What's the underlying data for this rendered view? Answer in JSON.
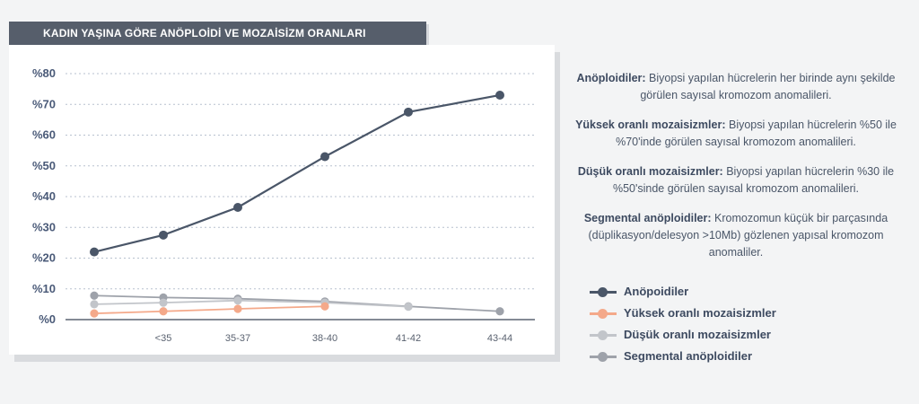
{
  "header": {
    "title": "KADIN YAŞINA GÖRE ANÖPLOİDİ VE MOZAİSİZM ORANLARI"
  },
  "chart_data": {
    "type": "line",
    "title": "KADIN YAŞINA GÖRE ANÖPLOİDİ VE MOZAİSİZM ORANLARI",
    "categories": [
      "",
      "<35",
      "35-37",
      "38-40",
      "41-42",
      "43-44"
    ],
    "y_ticks": [
      "%0",
      "%10",
      "%20",
      "%30",
      "%40",
      "%50",
      "%60",
      "%70",
      "%80"
    ],
    "ylim": [
      0,
      80
    ],
    "grid": true,
    "legend_position": "bottom-right",
    "series": [
      {
        "name": "Anöpoidiler",
        "color": "#4a5668",
        "values": [
          22,
          27.5,
          36.5,
          53,
          67.5,
          73
        ]
      },
      {
        "name": "Yüksek oranlı mozaisizmler",
        "color": "#f4a98a",
        "values": [
          2,
          2.7,
          3.5,
          4.3,
          null,
          null
        ]
      },
      {
        "name": "Düşük oranlı mozaisizmler",
        "color": "#c2c5ca",
        "values": [
          5,
          5.5,
          6.2,
          5.5,
          4.2,
          null
        ]
      },
      {
        "name": "Segmental anöploidiler",
        "color": "#9ea2aa",
        "values": [
          7.8,
          7.2,
          6.8,
          5.9,
          4.3,
          2.7
        ]
      }
    ]
  },
  "descriptions": [
    {
      "term": "Anöploidiler:",
      "text": " Biyopsi yapılan hücrelerin her birinde aynı şekilde görülen sayısal kromozom anomalileri."
    },
    {
      "term": "Yüksek oranlı mozaisizmler:",
      "text": " Biyopsi yapılan hücrelerin %50 ile %70'inde görülen sayısal kromozom anomalileri."
    },
    {
      "term": "Düşük oranlı mozaisizmler:",
      "text": " Biyopsi yapılan hücrelerin %30 ile %50'sinde görülen sayısal kromozom anomalileri."
    },
    {
      "term": "Segmental anöploidiler:",
      "text": " Kromozomun küçük bir parçasında (düplikasyon/delesyon >10Mb) gözlenen yapısal kromozom anomaliler."
    }
  ],
  "legend": [
    {
      "label": "Anöpoidiler",
      "color": "#4a5668"
    },
    {
      "label": "Yüksek oranlı mozaisizmler",
      "color": "#f4a98a"
    },
    {
      "label": "Düşük oranlı mozaisizmler",
      "color": "#c2c5ca"
    },
    {
      "label": "Segmental anöploidiler",
      "color": "#9ea2aa"
    }
  ]
}
